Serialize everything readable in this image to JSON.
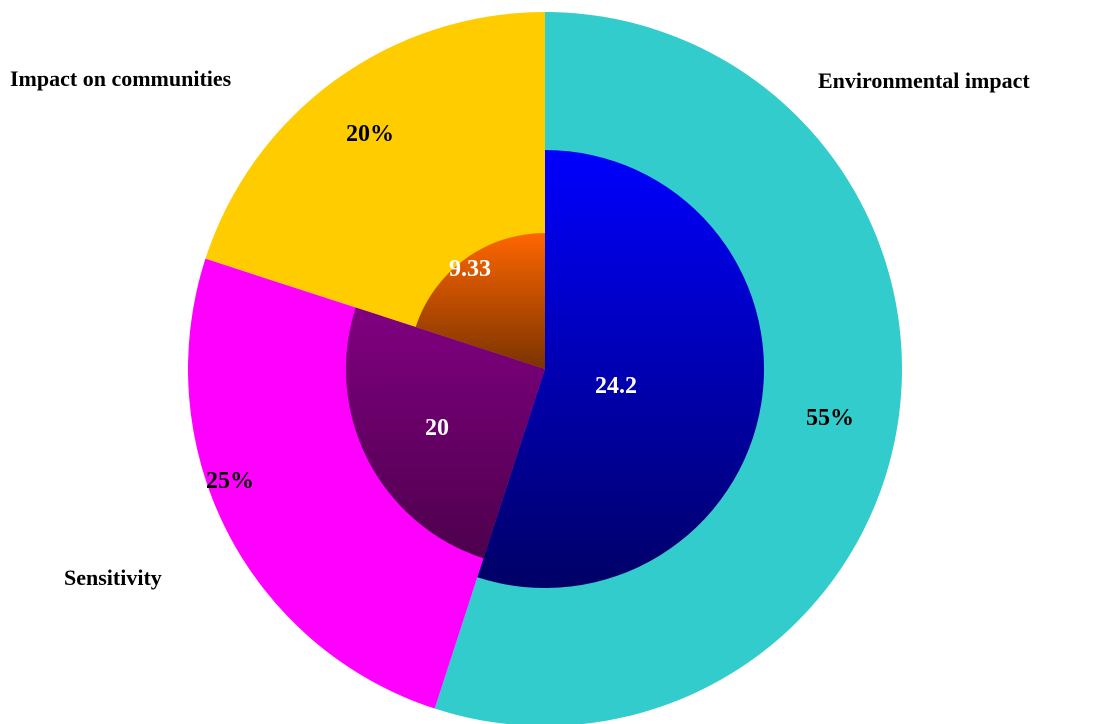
{
  "chart_data": {
    "type": "pie",
    "title": "",
    "categories": [
      "Environmental impact",
      "Sensitivity",
      "Impact on communities"
    ],
    "series": [
      {
        "ring": "outer",
        "values": [
          55,
          25,
          20
        ],
        "labels": [
          "55%",
          "25%",
          "20%"
        ]
      },
      {
        "ring": "inner",
        "values": [
          24.2,
          20,
          9.33
        ],
        "labels": [
          "24.2",
          "20",
          "9.33"
        ]
      }
    ],
    "colors": {
      "outer": [
        "#33CCCC",
        "#FF00FF",
        "#FFCC00"
      ],
      "inner_top": [
        "#0000FF",
        "#800080",
        "#FF6600"
      ],
      "inner_bottom": [
        "#000066",
        "#4D004D",
        "#7A3300"
      ]
    },
    "legend": "none"
  }
}
